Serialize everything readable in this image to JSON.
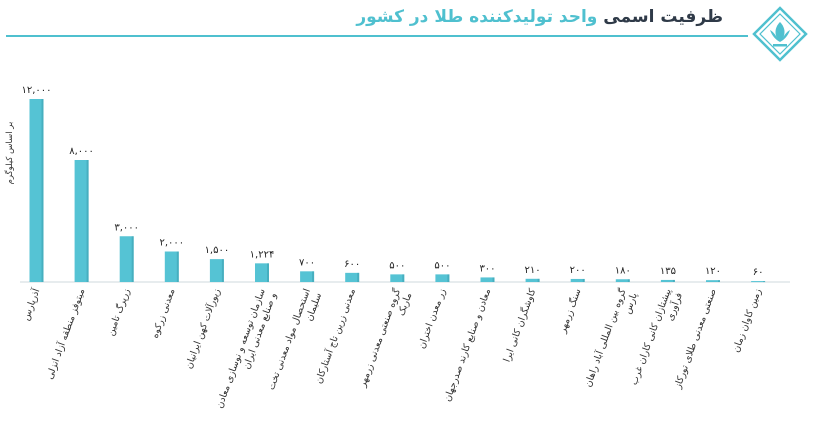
{
  "header": {
    "title_prefix": "ظرفیت اسمی",
    "title_suffix": "واحد تولیدکننده طلا در کشور"
  },
  "colors": {
    "bar": "#55c3d4",
    "bar_shadow": "#2a8a99",
    "accent": "#4fc0cf",
    "title": "#2f3a48"
  },
  "chart_data": {
    "type": "bar",
    "ylabel": "بر اساس کیلوگرم",
    "categories": [
      "آذرپارس",
      "میتوفز منطقه آزاد انزلی",
      "زرپرگ تامین",
      "معدنی زرکوه",
      "زیورآلات کهن ایرانیان",
      "سازمان توسعه و نوسازی معادن و صنایع معدنی ایران",
      "استحصال مواد معدنی تخت سلیمان",
      "معدنی زرین تاج آستارکان",
      "گروه صنعتی معدنی زرمهر ماربک",
      "زر معدن اختران",
      "معادن و صنایع کارند صدرجهان",
      "کاوشگران کانی ایرا",
      "سنگ زرمهر",
      "گروه بین المللی آباد راهان پارس",
      "پیشتازان کانی کاران غرب فرآوری",
      "صنعتی معدنی طلای تورکاز",
      "زمین کاوان زمان"
    ],
    "values": [
      12000,
      8000,
      3000,
      2000,
      1500,
      1224,
      700,
      600,
      500,
      500,
      300,
      210,
      200,
      180,
      135,
      120,
      60
    ],
    "value_labels": [
      "۱۲,۰۰۰",
      "۸,۰۰۰",
      "۳,۰۰۰",
      "۲,۰۰۰",
      "۱,۵۰۰",
      "۱,۲۲۴",
      "۷۰۰",
      "۶۰۰",
      "۵۰۰",
      "۵۰۰",
      "۳۰۰",
      "۲۱۰",
      "۲۰۰",
      "۱۸۰",
      "۱۳۵",
      "۱۲۰",
      "۶۰"
    ],
    "ylim": [
      0,
      12000
    ],
    "grid": false,
    "legend": "none"
  }
}
